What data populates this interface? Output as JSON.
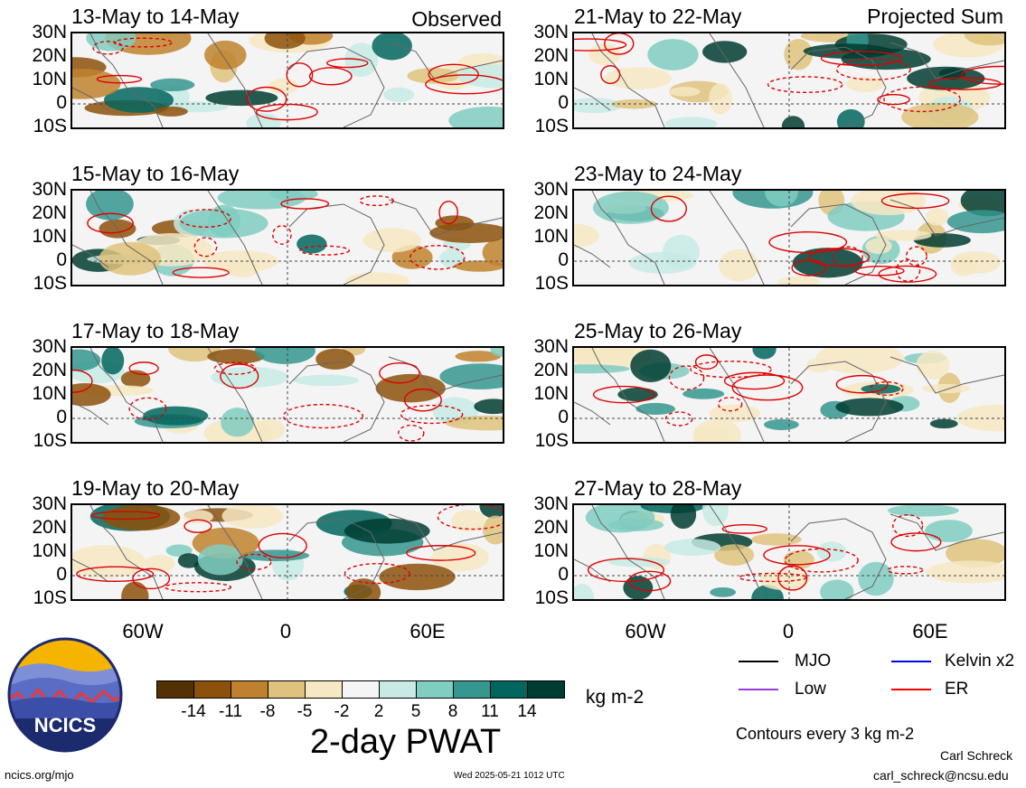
{
  "header": {
    "left_tag": "Observed",
    "right_tag": "Projected Sum"
  },
  "panels_left": [
    {
      "title": "13-May to 14-May"
    },
    {
      "title": "15-May to 16-May"
    },
    {
      "title": "17-May to 18-May"
    },
    {
      "title": "19-May to 20-May"
    }
  ],
  "panels_right": [
    {
      "title": "21-May to 22-May"
    },
    {
      "title": "23-May to 24-May"
    },
    {
      "title": "25-May to 26-May"
    },
    {
      "title": "27-May to 28-May"
    }
  ],
  "lat_labels": [
    "30N",
    "20N",
    "10N",
    "0",
    "10S"
  ],
  "lon_labels": [
    "60W",
    "0",
    "60E"
  ],
  "colorbar": {
    "colors": [
      "#543005",
      "#8c510a",
      "#bf812d",
      "#dfc27d",
      "#f6e8c3",
      "#f5f5f5",
      "#c7eae5",
      "#80cdc1",
      "#35978f",
      "#01665e",
      "#003c30"
    ],
    "ticks": [
      "-14",
      "-11",
      "-8",
      "-5",
      "-2",
      "2",
      "5",
      "8",
      "11",
      "14"
    ],
    "units": "kg m-2",
    "title": "2-day PWAT"
  },
  "legend": {
    "items": [
      {
        "label": "MJO",
        "color": "#000000"
      },
      {
        "label": "Kelvin x2",
        "color": "#0000ff"
      },
      {
        "label": "Low",
        "color": "#9a3be0"
      },
      {
        "label": "ER",
        "color": "#ff0000"
      }
    ],
    "contours_note": "Contours every 3 kg m-2"
  },
  "footer": {
    "url": "ncics.org/mjo",
    "timestamp": "Wed 2025-05-21 1012 UTC",
    "author": "Carl Schreck",
    "email": "carl_schreck@ncsu.edu",
    "logo_text": "NCICS"
  }
}
